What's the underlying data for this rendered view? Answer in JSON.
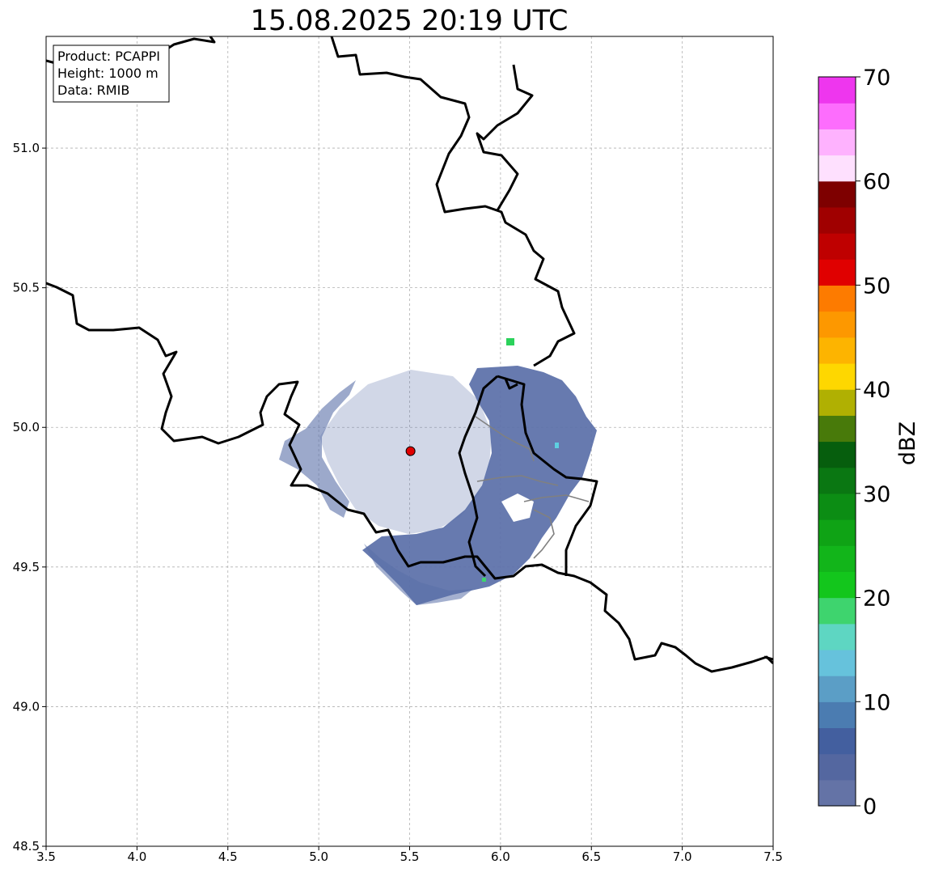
{
  "title": "15.08.2025 20:19 UTC",
  "info_box": {
    "line1": "Product: PCAPPI",
    "line2": "Height: 1000 m",
    "line3": "Data: RMIB"
  },
  "map": {
    "lon_range": [
      3.5,
      7.5
    ],
    "lat_range": [
      48.5,
      51.4
    ],
    "x_ticks": [
      "3.5",
      "4.0",
      "4.5",
      "5.0",
      "5.5",
      "6.0",
      "6.5",
      "7.0",
      "7.5"
    ],
    "y_ticks": [
      "48.5",
      "49.0",
      "49.5",
      "50.0",
      "50.5",
      "51.0"
    ],
    "radar_site": {
      "lon": 5.505,
      "lat": 49.915,
      "color": "#e00000"
    },
    "echo_color": "#5a6fa8",
    "grid": true
  },
  "colorbar": {
    "label": "dBZ",
    "min": 0,
    "max": 70,
    "ticks": [
      "0",
      "10",
      "20",
      "30",
      "40",
      "50",
      "60",
      "70"
    ],
    "colors": [
      "#6473a6",
      "#5467a0",
      "#435f9f",
      "#4b7cb1",
      "#5b9ec6",
      "#66c2dc",
      "#5ed6c2",
      "#3ed46e",
      "#13c61c",
      "#12b51a",
      "#0fa315",
      "#0c8d14",
      "#0a7712",
      "#065e0d",
      "#487a0a",
      "#b0b002",
      "#fed700",
      "#fdb400",
      "#fd9800",
      "#fd7b00",
      "#e00000",
      "#bf0000",
      "#a00000",
      "#7e0000",
      "#fee0fe",
      "#feb2fe",
      "#fd6dfd",
      "#ee36ee"
    ]
  }
}
